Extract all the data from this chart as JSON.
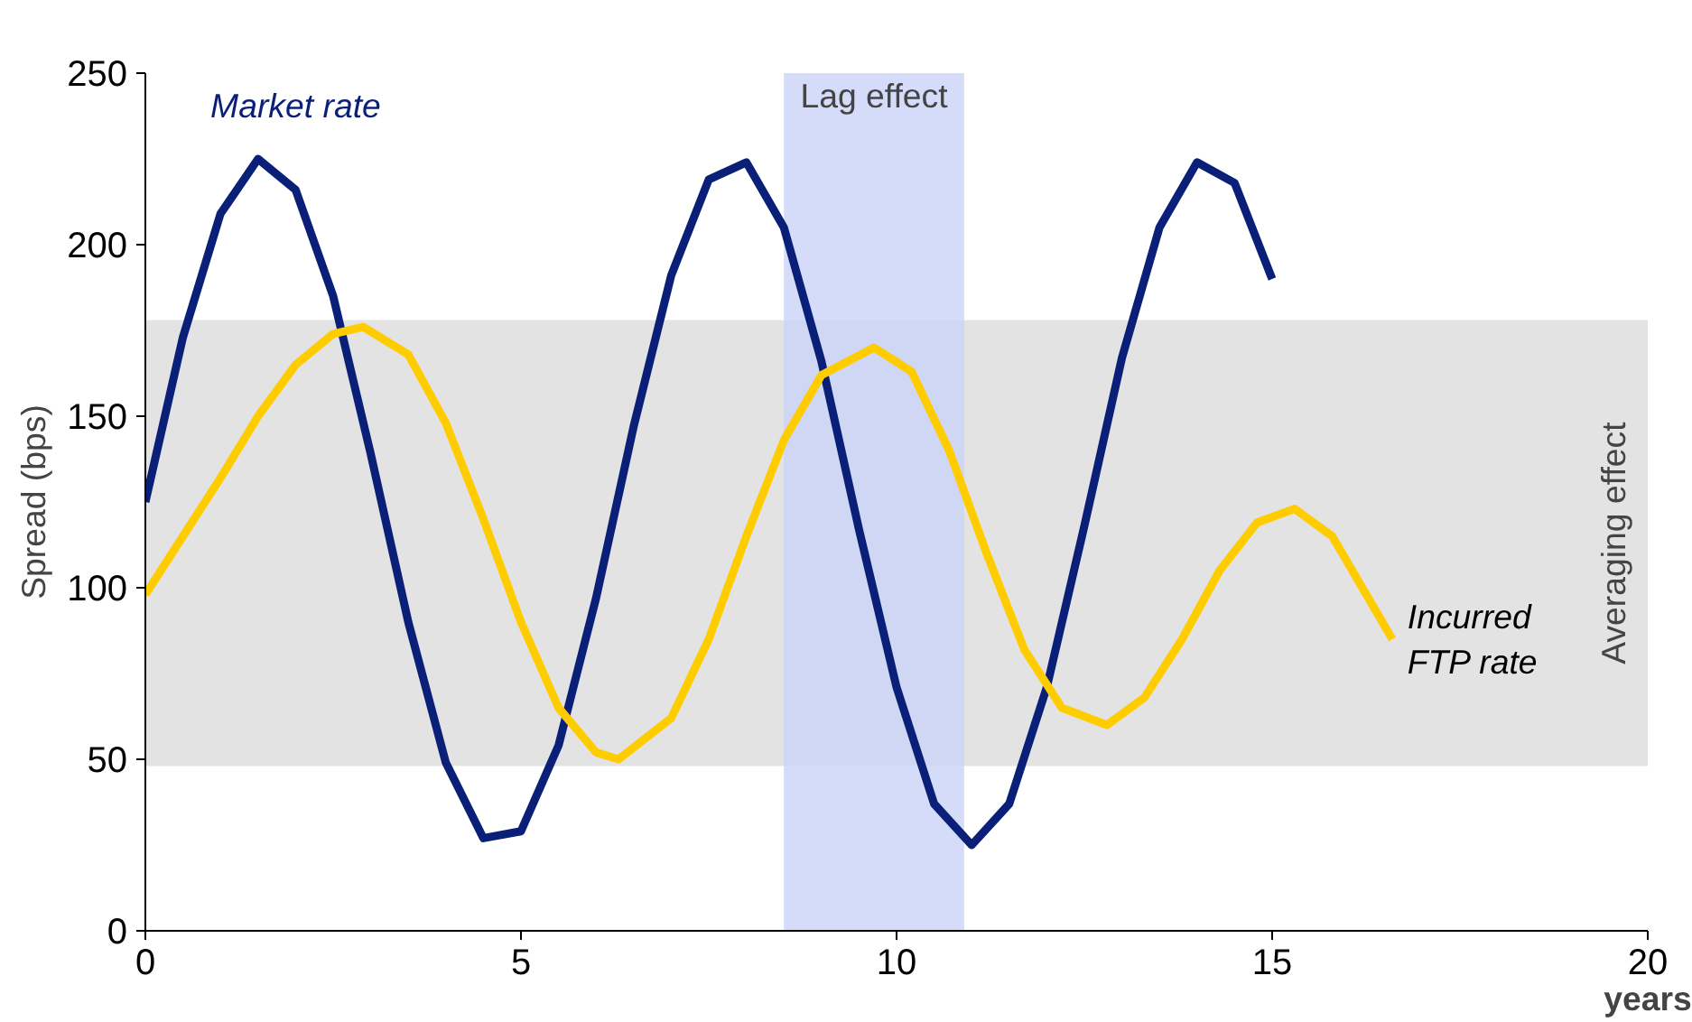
{
  "chart_data": {
    "type": "line",
    "xlabel": "years",
    "ylabel": "Spread (bps)",
    "xlim": [
      0,
      20
    ],
    "ylim": [
      0,
      250
    ],
    "xticks": [
      0,
      5,
      10,
      15,
      20
    ],
    "yticks": [
      0,
      50,
      100,
      150,
      200,
      250
    ],
    "grid": false,
    "legend": false,
    "line_style": "solid",
    "marker": "none",
    "bands": [
      {
        "axis": "y",
        "from": 48,
        "to": 178,
        "label": "Averaging effect",
        "color": "#dcdcdc"
      },
      {
        "axis": "x",
        "from": 8.5,
        "to": 10.9,
        "label": "Lag effect",
        "color": "#c9d3f7"
      }
    ],
    "series": [
      {
        "name": "Market rate",
        "color": "#0a1f78",
        "x": [
          0,
          0.5,
          1,
          1.5,
          2,
          2.5,
          3,
          3.5,
          4,
          4.5,
          5,
          5.5,
          6,
          6.5,
          7,
          7.5,
          8,
          8.5,
          9,
          9.5,
          10,
          10.5,
          11,
          11.5,
          12,
          12.5,
          13,
          13.5,
          14,
          14.5,
          15
        ],
        "values": [
          125,
          173,
          209,
          225,
          216,
          185,
          139,
          90,
          49,
          27,
          29,
          54,
          97,
          147,
          191,
          219,
          224,
          205,
          166,
          117,
          71,
          37,
          25,
          37,
          71,
          118,
          167,
          205,
          224,
          218,
          190
        ]
      },
      {
        "name": "Incurred FTP rate",
        "color": "#ffcc00",
        "x": [
          0,
          0.5,
          1,
          1.5,
          2,
          2.5,
          2.9,
          3.5,
          4,
          4.5,
          5,
          5.5,
          6,
          6.3,
          7,
          7.5,
          8,
          8.5,
          9,
          9.7,
          10.2,
          10.7,
          11.2,
          11.7,
          12.2,
          12.8,
          13.3,
          13.8,
          14.3,
          14.8,
          15.3,
          15.8,
          16.2,
          16.6
        ],
        "values": [
          98,
          115,
          132,
          150,
          165,
          174,
          176,
          168,
          148,
          120,
          90,
          65,
          52,
          50,
          62,
          85,
          115,
          143,
          162,
          170,
          163,
          140,
          110,
          82,
          65,
          60,
          68,
          85,
          105,
          119,
          123,
          115,
          100,
          85
        ]
      }
    ]
  }
}
